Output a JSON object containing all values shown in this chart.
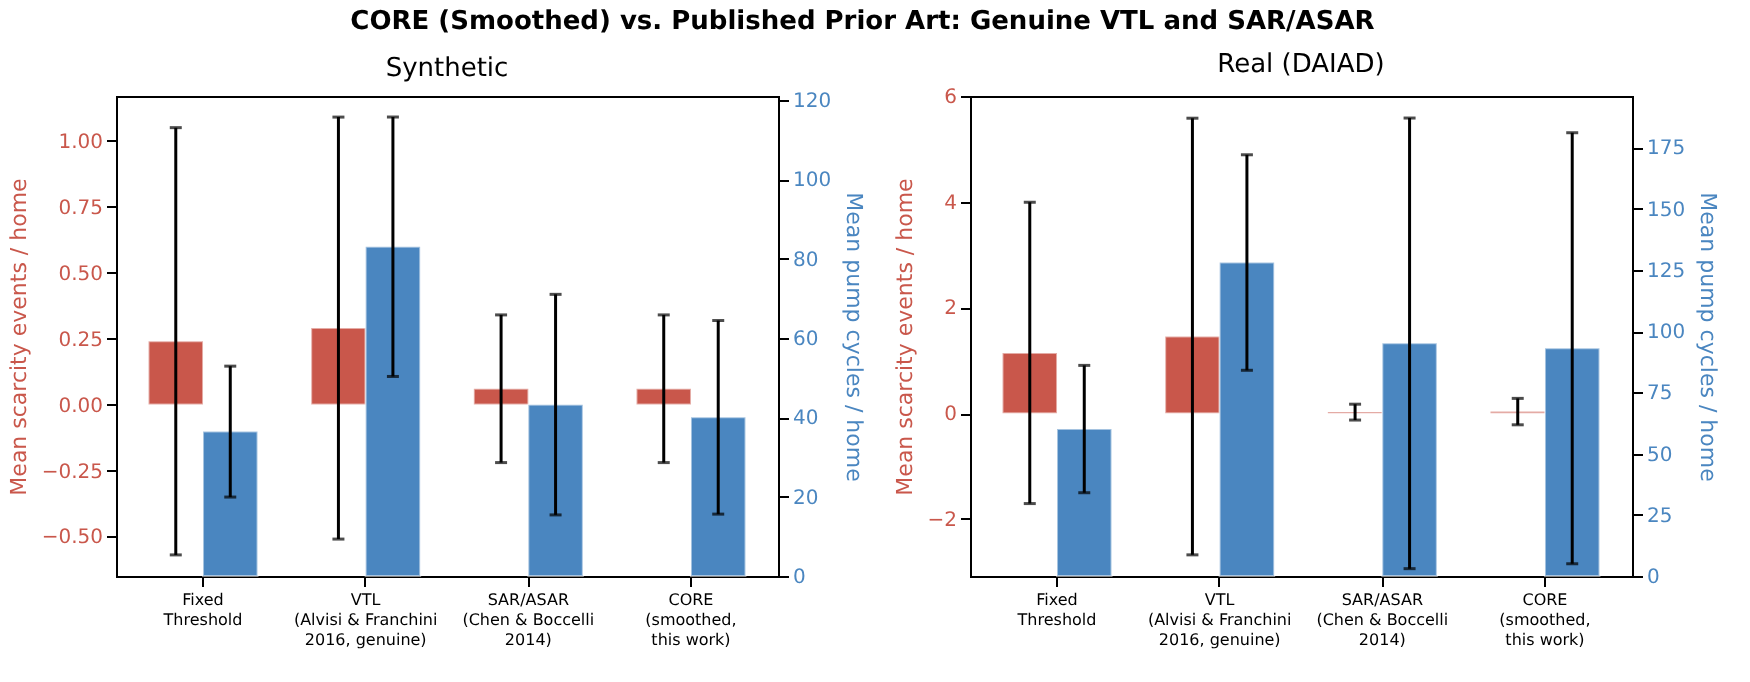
{
  "chart_data": [
    {
      "type": "bar",
      "title": "Synthetic",
      "annotations": [
        "CORE (Smoothed) vs. Published Prior Art: Genuine VTL and SAR/ASAR"
      ],
      "categories": [
        "Fixed\nThreshold",
        "VTL\n(Alvisi & Franchini\n2016, genuine)",
        "SAR/ASAR\n(Chen & Boccelli\n2014)",
        "CORE\n(smoothed,\nthis work)"
      ],
      "ylabel": "Mean scarcity events / home",
      "y2label": "Mean pump cycles / home",
      "ylim": [
        -0.65,
        1.17
      ],
      "yticks": [
        {
          "value": -0.5,
          "label": "−0.50"
        },
        {
          "value": -0.25,
          "label": "−0.25"
        },
        {
          "value": 0,
          "label": "0.00"
        },
        {
          "value": 0.25,
          "label": "0.25"
        },
        {
          "value": 0.5,
          "label": "0.50"
        },
        {
          "value": 0.75,
          "label": "0.75"
        },
        {
          "value": 1,
          "label": "1.00"
        }
      ],
      "y2lim": [
        0,
        121
      ],
      "y2ticks": [
        0,
        20,
        40,
        60,
        80,
        100,
        120
      ],
      "series": [
        {
          "color": "#c9574b",
          "values": [
            0.24,
            0.29,
            0.06,
            0.06
          ],
          "errors": [
            0.81,
            0.8,
            0.28,
            0.28
          ]
        },
        {
          "color": "#4a86c0",
          "axis": "y2",
          "values": [
            36.4,
            83,
            43.2,
            40
          ],
          "errors": [
            16.5,
            32.7,
            27.8,
            24.4
          ]
        }
      ]
    },
    {
      "type": "bar",
      "title": "Real (DAIAD)",
      "categories": [
        "Fixed\nThreshold",
        "VTL\n(Alvisi & Franchini\n2016, genuine)",
        "SAR/ASAR\n(Chen & Boccelli\n2014)",
        "CORE\n(smoothed,\nthis work)"
      ],
      "ylabel": "Mean scarcity events / home",
      "y2label": "Mean pump cycles / home",
      "ylim": [
        -3.08,
        6
      ],
      "yticks": [
        {
          "value": -2,
          "label": "−2"
        },
        0,
        2,
        4,
        6
      ],
      "y2lim": [
        0,
        196
      ],
      "y2ticks": [
        0,
        25,
        50,
        75,
        100,
        125,
        150,
        175
      ],
      "series": [
        {
          "color": "#c9574b",
          "values": [
            1.14,
            1.45,
            0.02,
            0.03
          ],
          "errors": [
            2.85,
            4.13,
            0.15,
            0.25
          ]
        },
        {
          "color": "#4a86c0",
          "axis": "y2",
          "values": [
            60,
            128,
            95,
            93
          ],
          "errors": [
            26,
            44,
            92,
            88
          ]
        }
      ]
    }
  ]
}
